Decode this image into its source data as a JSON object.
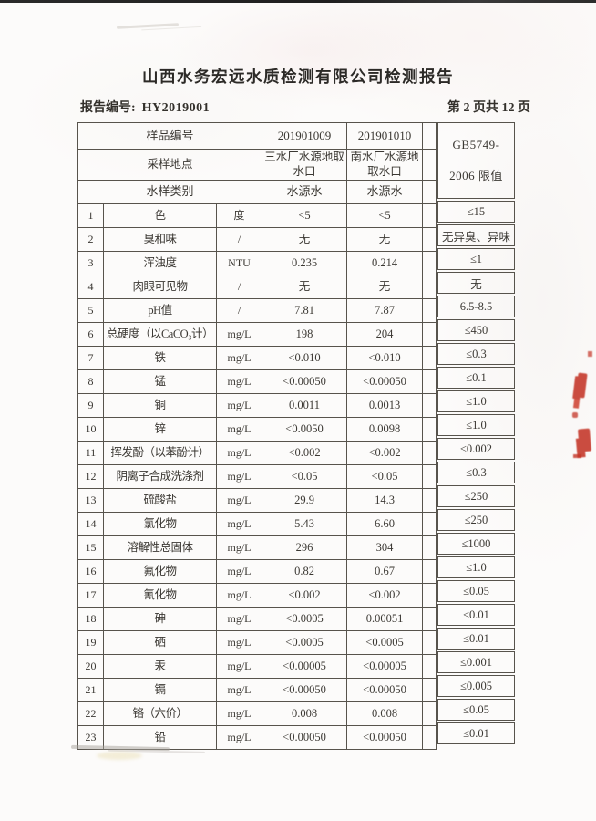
{
  "colors": {
    "stamp_red": "#c43527",
    "grid_line": "#57534c",
    "ink": "#3b3833"
  },
  "header": {
    "title": "山西水务宏远水质检测有限公司检测报告",
    "report_no_label": "报告编号:",
    "report_no": "HY2019001",
    "page_indicator": "第 2 页共 12 页"
  },
  "table": {
    "sample_id_label": "样品编号",
    "sample_ids": [
      "201901009",
      "201901010"
    ],
    "location_label": "采样地点",
    "locations": [
      "三水厂水源地取水口",
      "南水厂水源地取水口"
    ],
    "category_label": "水样类别",
    "categories": [
      "水源水",
      "水源水"
    ],
    "limit_header_line1": "GB5749-",
    "limit_header_line2": "2006 限值",
    "rows": [
      {
        "no": "1",
        "item": "色",
        "unit": "度",
        "v1": "<5",
        "v2": "<5",
        "limit": "≤15"
      },
      {
        "no": "2",
        "item": "臭和味",
        "unit": "/",
        "v1": "无",
        "v2": "无",
        "limit": "无异臭、异味"
      },
      {
        "no": "3",
        "item": "浑浊度",
        "unit": "NTU",
        "v1": "0.235",
        "v2": "0.214",
        "limit": "≤1"
      },
      {
        "no": "4",
        "item": "肉眼可见物",
        "unit": "/",
        "v1": "无",
        "v2": "无",
        "limit": "无"
      },
      {
        "no": "5",
        "item": "pH值",
        "unit": "/",
        "v1": "7.81",
        "v2": "7.87",
        "limit": "6.5-8.5"
      },
      {
        "no": "6",
        "item": "总硬度（以CaCO₃计）",
        "unit": "mg/L",
        "v1": "198",
        "v2": "204",
        "limit": "≤450"
      },
      {
        "no": "7",
        "item": "铁",
        "unit": "mg/L",
        "v1": "<0.010",
        "v2": "<0.010",
        "limit": "≤0.3"
      },
      {
        "no": "8",
        "item": "锰",
        "unit": "mg/L",
        "v1": "<0.00050",
        "v2": "<0.00050",
        "limit": "≤0.1"
      },
      {
        "no": "9",
        "item": "铜",
        "unit": "mg/L",
        "v1": "0.0011",
        "v2": "0.0013",
        "limit": "≤1.0"
      },
      {
        "no": "10",
        "item": "锌",
        "unit": "mg/L",
        "v1": "<0.0050",
        "v2": "0.0098",
        "limit": "≤1.0"
      },
      {
        "no": "11",
        "item": "挥发酚（以苯酚计）",
        "unit": "mg/L",
        "v1": "<0.002",
        "v2": "<0.002",
        "limit": "≤0.002"
      },
      {
        "no": "12",
        "item": "阴离子合成洗涤剂",
        "unit": "mg/L",
        "v1": "<0.05",
        "v2": "<0.05",
        "limit": "≤0.3"
      },
      {
        "no": "13",
        "item": "硫酸盐",
        "unit": "mg/L",
        "v1": "29.9",
        "v2": "14.3",
        "limit": "≤250"
      },
      {
        "no": "14",
        "item": "氯化物",
        "unit": "mg/L",
        "v1": "5.43",
        "v2": "6.60",
        "limit": "≤250"
      },
      {
        "no": "15",
        "item": "溶解性总固体",
        "unit": "mg/L",
        "v1": "296",
        "v2": "304",
        "limit": "≤1000"
      },
      {
        "no": "16",
        "item": "氟化物",
        "unit": "mg/L",
        "v1": "0.82",
        "v2": "0.67",
        "limit": "≤1.0"
      },
      {
        "no": "17",
        "item": "氰化物",
        "unit": "mg/L",
        "v1": "<0.002",
        "v2": "<0.002",
        "limit": "≤0.05"
      },
      {
        "no": "18",
        "item": "砷",
        "unit": "mg/L",
        "v1": "<0.0005",
        "v2": "0.00051",
        "limit": "≤0.01"
      },
      {
        "no": "19",
        "item": "硒",
        "unit": "mg/L",
        "v1": "<0.0005",
        "v2": "<0.0005",
        "limit": "≤0.01"
      },
      {
        "no": "20",
        "item": "汞",
        "unit": "mg/L",
        "v1": "<0.00005",
        "v2": "<0.00005",
        "limit": "≤0.001"
      },
      {
        "no": "21",
        "item": "镉",
        "unit": "mg/L",
        "v1": "<0.00050",
        "v2": "<0.00050",
        "limit": "≤0.005"
      },
      {
        "no": "22",
        "item": "铬（六价）",
        "unit": "mg/L",
        "v1": "0.008",
        "v2": "0.008",
        "limit": "≤0.05"
      },
      {
        "no": "23",
        "item": "铅",
        "unit": "mg/L",
        "v1": "<0.00050",
        "v2": "<0.00050",
        "limit": "≤0.01"
      }
    ]
  }
}
